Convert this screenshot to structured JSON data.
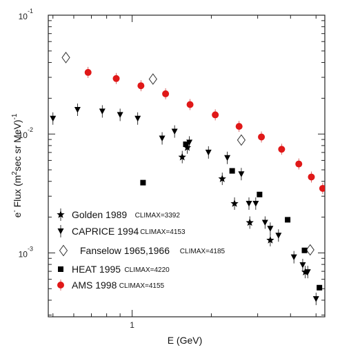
{
  "chart_data": {
    "type": "scatter",
    "title": "",
    "xlabel": "E (GeV)",
    "ylabel": {
      "prefix": "e",
      "prefix_sup": "-",
      "main": " Flux (m",
      "main_sup": "2",
      "rest": "sec sr MeV)",
      "rest_sup": "-1"
    },
    "x_scale": "log",
    "y_scale": "log",
    "xlim": [
      0.48,
      5.4
    ],
    "ylim": [
      0.00029,
      0.1
    ],
    "x_ticks": [
      {
        "value": 1,
        "label": "1"
      }
    ],
    "y_ticks": [
      {
        "value": 0.1,
        "base": "10",
        "exp": "-1"
      },
      {
        "value": 0.01,
        "base": "10",
        "exp": "-2"
      },
      {
        "value": 0.001,
        "base": "10",
        "exp": "-3"
      }
    ],
    "grid": false,
    "legend_position": "bottom-left",
    "series": [
      {
        "name": "Golden 1989",
        "climax": "CLIMAX=3392",
        "marker": "star",
        "color": "#000000",
        "points": [
          {
            "x": 1.55,
            "y": 0.0064
          },
          {
            "x": 1.62,
            "y": 0.0077
          },
          {
            "x": 2.2,
            "y": 0.0042
          },
          {
            "x": 2.45,
            "y": 0.0026
          },
          {
            "x": 2.8,
            "y": 0.0018
          },
          {
            "x": 3.35,
            "y": 0.00128
          },
          {
            "x": 4.55,
            "y": 0.00069
          }
        ]
      },
      {
        "name": "CAPRICE 1994",
        "climax": "CLIMAX=4153",
        "marker": "triangle-down",
        "color": "#000000",
        "points": [
          {
            "x": 0.5,
            "y": 0.0135
          },
          {
            "x": 0.62,
            "y": 0.016
          },
          {
            "x": 0.77,
            "y": 0.0155
          },
          {
            "x": 0.9,
            "y": 0.0145
          },
          {
            "x": 1.05,
            "y": 0.0135
          },
          {
            "x": 1.3,
            "y": 0.0092
          },
          {
            "x": 1.45,
            "y": 0.0105
          },
          {
            "x": 1.65,
            "y": 0.0085
          },
          {
            "x": 1.95,
            "y": 0.007
          },
          {
            "x": 2.3,
            "y": 0.0063
          },
          {
            "x": 2.6,
            "y": 0.0046
          },
          {
            "x": 2.78,
            "y": 0.0026
          },
          {
            "x": 2.95,
            "y": 0.0026
          },
          {
            "x": 3.2,
            "y": 0.0018
          },
          {
            "x": 3.35,
            "y": 0.0016
          },
          {
            "x": 3.6,
            "y": 0.0014
          },
          {
            "x": 4.12,
            "y": 0.00092
          },
          {
            "x": 4.45,
            "y": 0.00079
          },
          {
            "x": 4.65,
            "y": 0.00069
          },
          {
            "x": 5.0,
            "y": 0.00041
          }
        ]
      },
      {
        "name": "Fanselow 1965,1966",
        "climax": "CLIMAX=4185",
        "marker": "diamond-open",
        "color": "#000000",
        "points": [
          {
            "x": 0.56,
            "y": 0.044
          },
          {
            "x": 1.2,
            "y": 0.029
          },
          {
            "x": 2.6,
            "y": 0.0089
          },
          {
            "x": 4.75,
            "y": 0.00106
          }
        ]
      },
      {
        "name": "HEAT 1995",
        "climax": "CLIMAX=4220",
        "marker": "square",
        "color": "#000000",
        "points": [
          {
            "x": 1.1,
            "y": 0.0039
          },
          {
            "x": 1.6,
            "y": 0.0082
          },
          {
            "x": 2.4,
            "y": 0.0049
          },
          {
            "x": 3.05,
            "y": 0.0031
          },
          {
            "x": 3.9,
            "y": 0.0019
          },
          {
            "x": 4.52,
            "y": 0.00105
          },
          {
            "x": 5.15,
            "y": 0.00051
          }
        ]
      },
      {
        "name": "AMS 1998",
        "climax": "CLIMAX=4155",
        "marker": "circle",
        "color": "#e01818",
        "points": [
          {
            "x": 0.68,
            "y": 0.033
          },
          {
            "x": 0.87,
            "y": 0.0293
          },
          {
            "x": 1.08,
            "y": 0.0255
          },
          {
            "x": 1.34,
            "y": 0.0218
          },
          {
            "x": 1.66,
            "y": 0.0177
          },
          {
            "x": 2.07,
            "y": 0.0145
          },
          {
            "x": 2.55,
            "y": 0.0116
          },
          {
            "x": 3.1,
            "y": 0.00945
          },
          {
            "x": 3.7,
            "y": 0.00745
          },
          {
            "x": 4.3,
            "y": 0.0056
          },
          {
            "x": 4.8,
            "y": 0.00435
          },
          {
            "x": 5.3,
            "y": 0.00349
          }
        ]
      }
    ]
  },
  "chart_data_note_ignore": null
}
